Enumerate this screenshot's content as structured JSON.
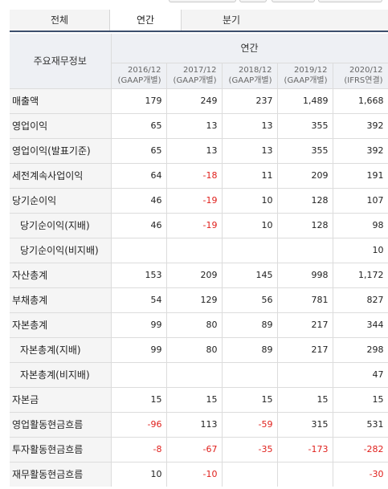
{
  "tabs": [
    {
      "label": "전체",
      "active": false
    },
    {
      "label": "연간",
      "active": true
    },
    {
      "label": "분기",
      "active": false
    }
  ],
  "table": {
    "label_header": "주요재무정보",
    "group_header": "연간",
    "periods": [
      {
        "date": "2016/12",
        "basis": "(GAAP개별)"
      },
      {
        "date": "2017/12",
        "basis": "(GAAP개별)"
      },
      {
        "date": "2018/12",
        "basis": "(GAAP개별)"
      },
      {
        "date": "2019/12",
        "basis": "(GAAP개별)"
      },
      {
        "date": "2020/12",
        "basis": "(IFRS연결)"
      }
    ],
    "rows": [
      {
        "label": "매출액",
        "sub": false,
        "values": [
          "179",
          "249",
          "237",
          "1,489",
          "1,668"
        ]
      },
      {
        "label": "영업이익",
        "sub": false,
        "values": [
          "65",
          "13",
          "13",
          "355",
          "392"
        ]
      },
      {
        "label": "영업이익(발표기준)",
        "sub": false,
        "values": [
          "65",
          "13",
          "13",
          "355",
          "392"
        ]
      },
      {
        "label": "세전계속사업이익",
        "sub": false,
        "values": [
          "64",
          "-18",
          "11",
          "209",
          "191"
        ]
      },
      {
        "label": "당기순이익",
        "sub": false,
        "values": [
          "46",
          "-19",
          "10",
          "128",
          "107"
        ]
      },
      {
        "label": "당기순이익(지배)",
        "sub": true,
        "values": [
          "46",
          "-19",
          "10",
          "128",
          "98"
        ]
      },
      {
        "label": "당기순이익(비지배)",
        "sub": true,
        "values": [
          "",
          "",
          "",
          "",
          "10"
        ]
      },
      {
        "label": "자산총계",
        "sub": false,
        "values": [
          "153",
          "209",
          "145",
          "998",
          "1,172"
        ]
      },
      {
        "label": "부채총계",
        "sub": false,
        "values": [
          "54",
          "129",
          "56",
          "781",
          "827"
        ]
      },
      {
        "label": "자본총계",
        "sub": false,
        "values": [
          "99",
          "80",
          "89",
          "217",
          "344"
        ]
      },
      {
        "label": "자본총계(지배)",
        "sub": true,
        "values": [
          "99",
          "80",
          "89",
          "217",
          "298"
        ]
      },
      {
        "label": "자본총계(비지배)",
        "sub": true,
        "values": [
          "",
          "",
          "",
          "",
          "47"
        ]
      },
      {
        "label": "자본금",
        "sub": false,
        "values": [
          "15",
          "15",
          "15",
          "15",
          "15"
        ]
      },
      {
        "label": "영업활동현금흐름",
        "sub": false,
        "values": [
          "-96",
          "113",
          "-59",
          "315",
          "531"
        ]
      },
      {
        "label": "투자활동현금흐름",
        "sub": false,
        "values": [
          "-8",
          "-67",
          "-35",
          "-173",
          "-282"
        ]
      },
      {
        "label": "재무활동현금흐름",
        "sub": false,
        "values": [
          "10",
          "-10",
          "",
          "",
          "-30"
        ]
      }
    ]
  },
  "colors": {
    "negative": "#e0201c",
    "tab_underline": "#3c4f6d",
    "header_bg": "#eef0f4",
    "label_bg": "#f5f5f5"
  }
}
